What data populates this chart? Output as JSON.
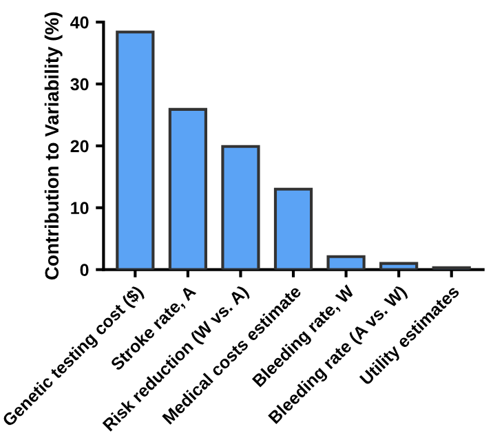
{
  "chart_data": {
    "type": "bar",
    "ylabel": "Contribution to Variability (%)",
    "categories": [
      "Genetic testing cost ($)",
      "Stroke rate, A",
      "Risk reduction (W vs. A)",
      "Medical costs estimate",
      "Bleeding rate, W",
      "Bleeding rate (A vs. W)",
      "Utility estimates"
    ],
    "values": [
      38.4,
      25.9,
      19.9,
      13.0,
      2.1,
      1.0,
      0.3
    ],
    "color": "#5ba3f5",
    "ylim": [
      0,
      40
    ],
    "yticks": [
      0,
      10,
      20,
      30,
      40
    ],
    "grid": false
  }
}
